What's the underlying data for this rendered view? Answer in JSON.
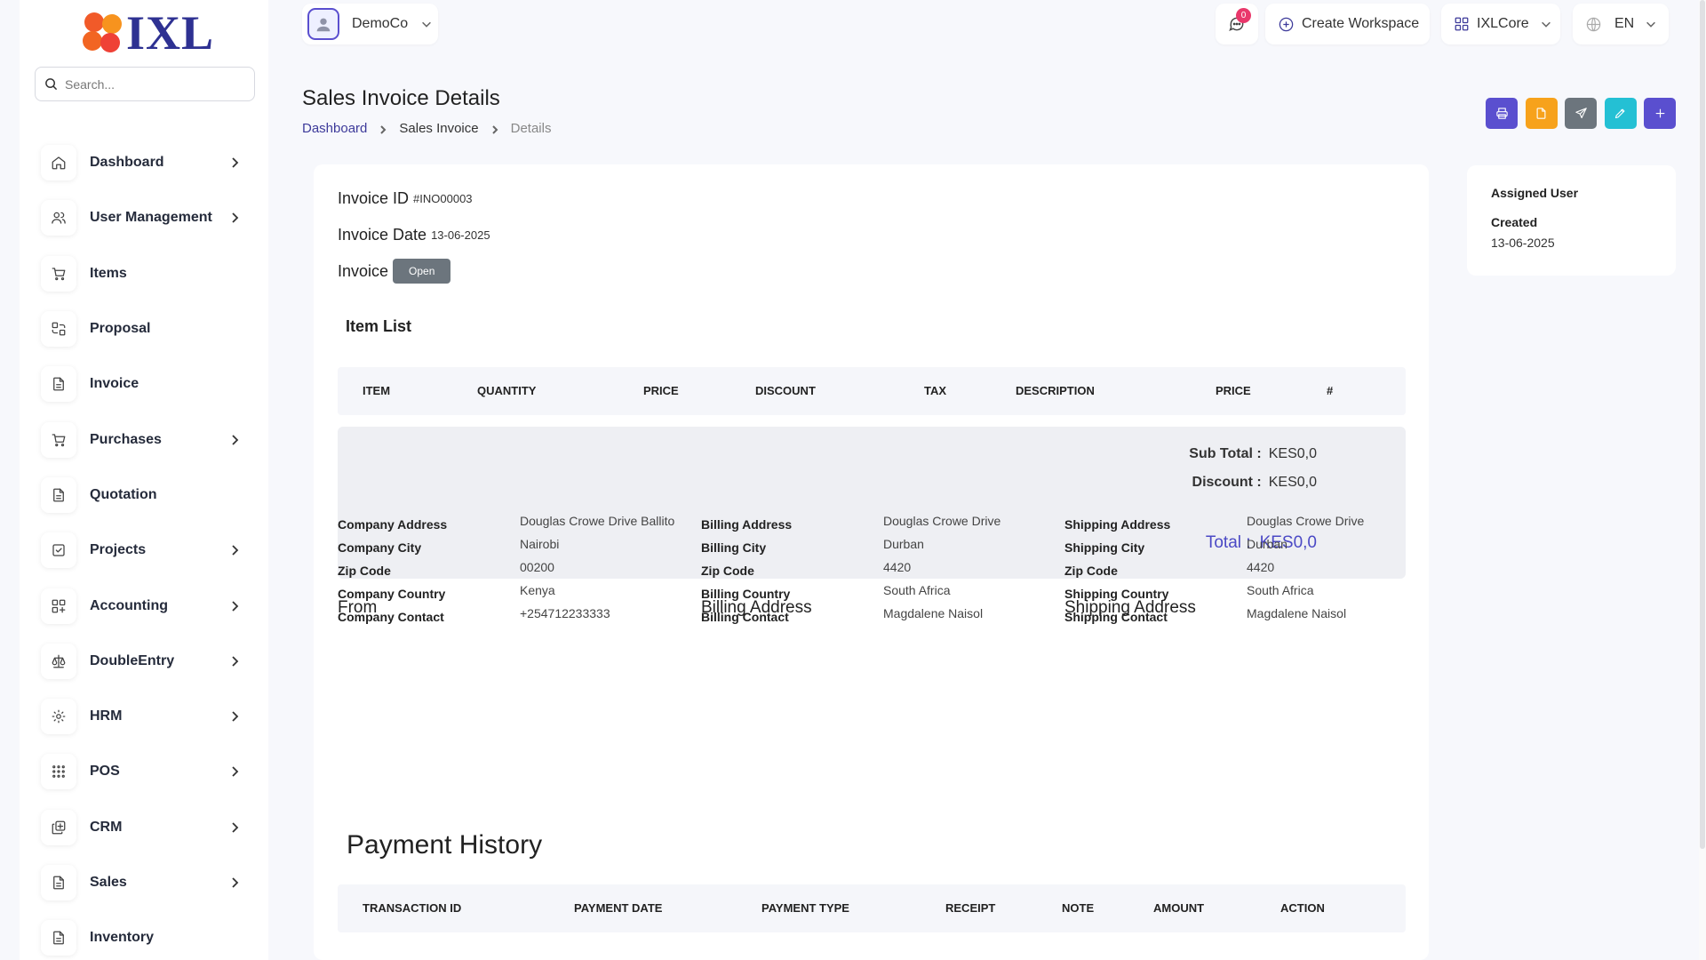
{
  "brand": {
    "logo_text": "IXL"
  },
  "search": {
    "placeholder": "Search..."
  },
  "sidebar": {
    "items": [
      {
        "label": "Dashboard",
        "icon": "home-icon",
        "chevron": true
      },
      {
        "label": "User Management",
        "icon": "users-icon",
        "chevron": true
      },
      {
        "label": "Items",
        "icon": "cart-icon",
        "chevron": false
      },
      {
        "label": "Proposal",
        "icon": "proposal-icon",
        "chevron": false
      },
      {
        "label": "Invoice",
        "icon": "file-icon",
        "chevron": false
      },
      {
        "label": "Purchases",
        "icon": "cart-icon",
        "chevron": true
      },
      {
        "label": "Quotation",
        "icon": "file-icon",
        "chevron": false
      },
      {
        "label": "Projects",
        "icon": "checkbox-icon",
        "chevron": true
      },
      {
        "label": "Accounting",
        "icon": "grid-icon",
        "chevron": true
      },
      {
        "label": "DoubleEntry",
        "icon": "scale-icon",
        "chevron": true
      },
      {
        "label": "HRM",
        "icon": "hrm-icon",
        "chevron": true
      },
      {
        "label": "POS",
        "icon": "dots-grid-icon",
        "chevron": true
      },
      {
        "label": "CRM",
        "icon": "layers-icon",
        "chevron": true
      },
      {
        "label": "Sales",
        "icon": "file-icon",
        "chevron": true
      },
      {
        "label": "Inventory",
        "icon": "file-icon",
        "chevron": false
      }
    ]
  },
  "topbar": {
    "company": "DemoCo",
    "notifications_count": "0",
    "create_workspace": "Create Workspace",
    "workspace": "IXLCore",
    "language": "EN"
  },
  "page": {
    "title": "Sales Invoice Details",
    "breadcrumb": [
      "Dashboard",
      "Sales Invoice",
      "Details"
    ]
  },
  "actions": [
    {
      "name": "print-button",
      "icon": "printer-icon",
      "color": "#5a4fcf"
    },
    {
      "name": "pdf-button",
      "icon": "file-icon",
      "color": "#f7a21b"
    },
    {
      "name": "send-button",
      "icon": "send-icon",
      "color": "#6c757d"
    },
    {
      "name": "edit-button",
      "icon": "pencil-icon",
      "color": "#24c0d4"
    },
    {
      "name": "add-button",
      "icon": "plus-icon",
      "color": "#5a4fcf"
    }
  ],
  "invoice": {
    "id_label": "Invoice ID",
    "id_value": "#INO00003",
    "date_label": "Invoice Date",
    "date_value": "13-06-2025",
    "status_label": "Invoice",
    "status_value": "Open"
  },
  "item_list": {
    "title": "Item List",
    "columns": [
      "ITEM",
      "QUANTITY",
      "PRICE",
      "DISCOUNT",
      "TAX",
      "DESCRIPTION",
      "PRICE",
      "#"
    ]
  },
  "totals": {
    "subtotal_label": "Sub Total :",
    "subtotal_value": "KES0,0",
    "discount_label": "Discount :",
    "discount_value": "KES0,0",
    "total_label": "Total :",
    "total_value": "KES0,0"
  },
  "from": {
    "title": "From",
    "rows": [
      {
        "k": "Company Address",
        "v": "Douglas Crowe Drive Ballito"
      },
      {
        "k": "Company City",
        "v": "Nairobi"
      },
      {
        "k": "Zip Code",
        "v": "00200"
      },
      {
        "k": "Company Country",
        "v": "Kenya"
      },
      {
        "k": "Company Contact",
        "v": "+254712233333"
      }
    ]
  },
  "billing": {
    "title": "Billing Address",
    "rows": [
      {
        "k": "Billing Address",
        "v": "Douglas Crowe Drive"
      },
      {
        "k": "Billing City",
        "v": "Durban"
      },
      {
        "k": "Zip Code",
        "v": "4420"
      },
      {
        "k": "Billing Country",
        "v": "South Africa"
      },
      {
        "k": "Billing Contact",
        "v": "Magdalene Naisol"
      }
    ]
  },
  "shipping": {
    "title": "Shipping Address",
    "rows": [
      {
        "k": "Shipping Address",
        "v": "Douglas Crowe Drive"
      },
      {
        "k": "Shipping City",
        "v": "Durban"
      },
      {
        "k": "Zip Code",
        "v": "4420"
      },
      {
        "k": "Shipping Country",
        "v": "South Africa"
      },
      {
        "k": "Shipping Contact",
        "v": "Magdalene Naisol"
      }
    ]
  },
  "payment_history": {
    "title": "Payment History",
    "columns": [
      "TRANSACTION ID",
      "PAYMENT DATE",
      "PAYMENT TYPE",
      "RECEIPT",
      "NOTE",
      "AMOUNT",
      "ACTION"
    ]
  },
  "side_card": {
    "title": "Assigned User",
    "created_label": "Created",
    "created_value": "13-06-2025"
  },
  "colors": {
    "accent": "#3d3a9a",
    "brand_orange": "#f15a29"
  }
}
